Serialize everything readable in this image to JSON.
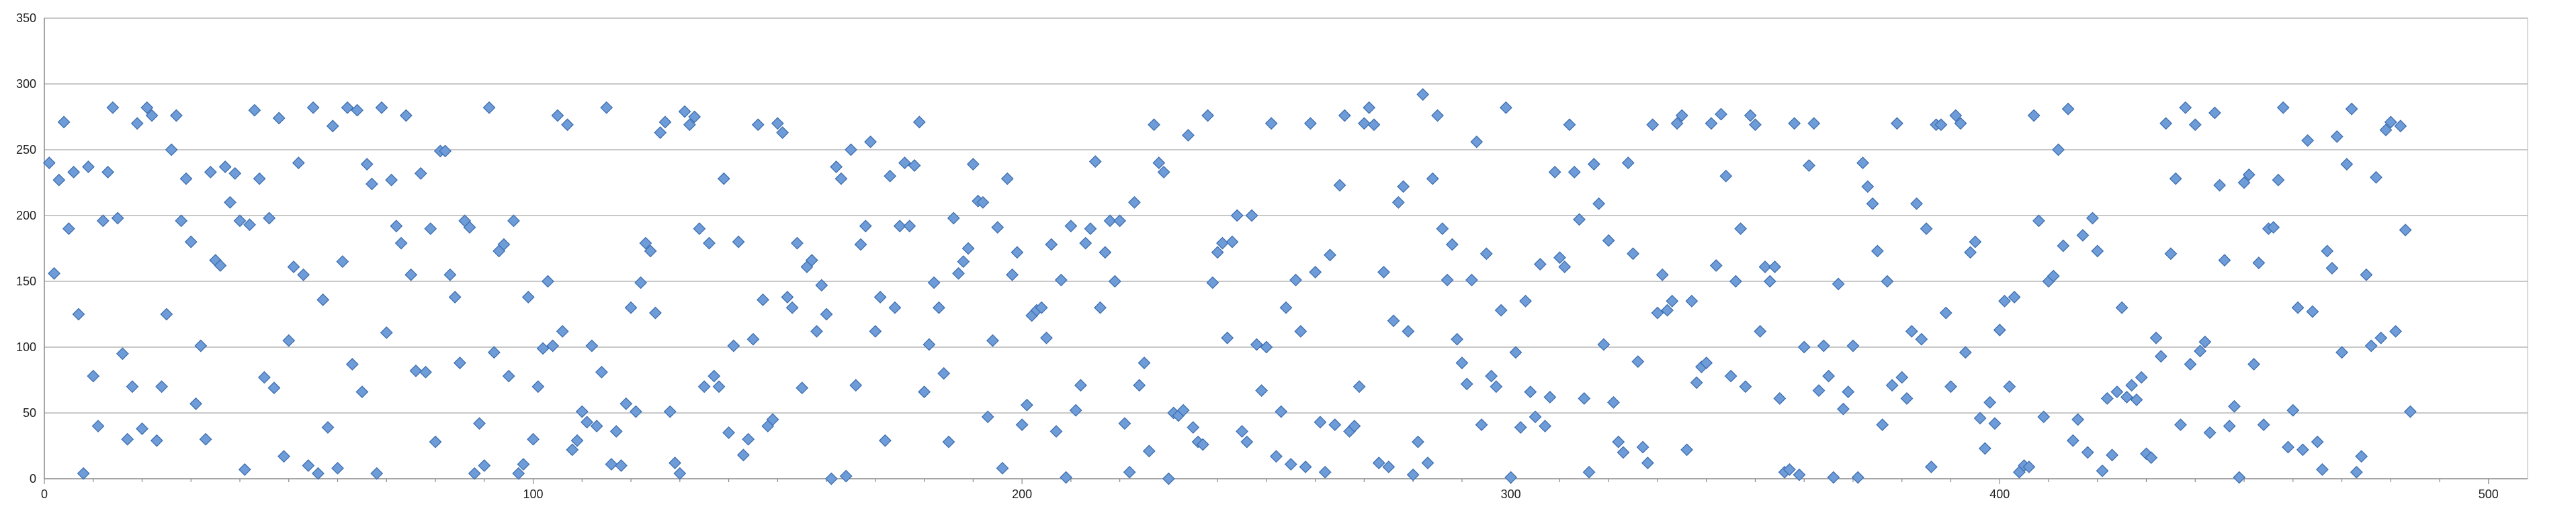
{
  "chart_data": {
    "type": "scatter",
    "title": "",
    "xlabel": "",
    "ylabel": "",
    "xlim": [
      0,
      508
    ],
    "ylim": [
      0,
      350
    ],
    "grid": "horizontal",
    "legend": "none",
    "marker": "diamond",
    "colors": {
      "marker_fill": "#6e9cd8",
      "marker_stroke": "#3f6fb0",
      "gridline": "#b5b5b5",
      "axis": "#888888"
    },
    "x_ticks": [
      "0",
      "100",
      "200",
      "300",
      "400",
      "500"
    ],
    "y_ticks": [
      "0",
      "50",
      "100",
      "150",
      "200",
      "250",
      "300",
      "350"
    ],
    "series": [
      {
        "y": [
          240,
          156,
          227,
          271,
          190,
          233,
          125,
          4,
          237,
          78,
          40,
          196,
          233,
          282,
          198,
          95,
          30,
          70,
          270,
          38,
          282,
          276,
          29,
          70,
          125,
          250,
          276,
          196,
          228,
          180,
          57,
          101,
          30,
          233,
          166,
          162,
          237,
          210,
          232,
          196,
          7,
          193,
          280,
          228,
          77,
          198,
          69,
          274,
          17,
          105,
          161,
          240,
          155,
          10,
          282,
          4,
          136,
          39,
          268,
          8,
          165,
          282,
          87,
          280,
          66,
          239,
          224,
          4,
          282,
          111,
          227,
          192,
          179,
          276,
          155,
          82,
          232,
          81,
          190,
          28,
          249,
          249,
          155,
          138,
          88,
          196,
          191,
          4,
          42,
          10,
          282,
          96,
          173,
          178,
          78,
          196,
          4,
          11,
          138,
          30,
          70,
          99,
          150,
          101,
          276,
          112,
          269,
          22,
          29,
          51,
          43,
          101,
          40,
          81,
          282,
          11,
          36,
          10,
          57,
          130,
          51,
          149,
          179,
          173,
          126,
          263,
          271,
          51,
          12,
          4,
          279,
          269,
          275,
          190,
          70,
          179,
          78,
          70,
          228,
          35,
          101,
          180,
          18,
          30,
          106,
          269,
          136,
          40,
          45,
          270,
          263,
          138,
          130,
          179,
          69,
          161,
          166,
          112,
          147,
          125,
          0,
          237,
          228,
          2,
          250,
          71,
          178,
          192,
          256,
          112,
          138,
          29,
          230,
          130,
          192,
          240,
          192,
          238,
          271,
          66,
          102,
          149,
          130,
          80,
          28,
          198,
          156,
          165,
          175,
          239,
          211,
          210,
          47,
          105,
          191,
          8,
          228,
          155,
          172,
          41,
          56,
          124,
          128,
          130,
          107,
          178,
          36,
          151,
          1,
          192,
          52,
          71,
          179,
          190,
          241,
          130,
          172,
          196,
          150,
          196,
          42,
          5,
          210,
          71,
          88,
          21,
          269,
          240,
          233,
          0,
          50,
          48,
          52,
          261,
          39,
          28,
          26,
          276,
          149,
          172,
          179,
          107,
          180,
          200,
          36,
          28,
          200,
          102,
          67,
          100,
          270,
          17,
          51,
          130,
          11,
          151,
          112,
          9,
          270,
          157,
          43,
          5,
          170,
          41,
          223,
          276,
          36,
          40,
          70,
          270,
          282,
          269,
          12,
          157,
          9,
          120,
          210,
          222,
          112,
          3,
          28,
          292,
          12,
          228,
          276,
          190,
          151,
          178,
          106,
          88,
          72,
          151,
          256,
          41,
          171,
          78,
          70,
          128,
          282,
          1,
          96,
          39,
          135,
          66,
          47,
          163,
          40,
          62,
          233,
          168,
          161,
          269,
          233,
          197,
          61,
          5,
          239,
          209,
          102,
          181,
          58,
          28,
          20,
          240,
          171,
          89,
          24,
          12,
          269,
          126,
          155,
          128,
          135,
          270,
          276,
          22,
          135,
          73,
          85,
          88,
          270,
          162,
          277,
          230,
          78,
          150,
          190,
          70,
          276,
          269,
          112,
          161,
          150,
          161,
          61,
          5,
          7,
          270,
          3,
          100,
          238,
          270,
          67,
          101,
          78,
          1,
          148,
          53,
          66,
          101,
          1,
          240,
          222,
          209,
          173,
          41,
          150,
          71,
          270,
          77,
          61,
          112,
          209,
          106,
          190,
          9,
          269,
          269,
          126,
          70,
          276,
          270,
          96,
          172,
          180,
          46,
          23,
          58,
          42,
          113,
          135,
          70,
          138,
          5,
          10,
          9,
          276,
          196,
          47,
          150,
          154,
          250,
          177,
          281,
          29,
          45,
          185,
          20,
          198,
          173,
          6,
          61,
          18,
          66,
          130,
          62,
          71,
          60,
          77,
          19,
          16,
          107,
          93,
          270,
          171,
          228,
          41,
          282,
          87,
          269,
          97,
          104,
          35,
          278,
          223,
          166,
          40,
          55,
          1,
          225,
          231,
          87,
          164,
          41,
          190,
          191,
          227,
          282,
          24,
          52,
          130,
          22,
          257,
          127,
          28,
          7,
          173,
          160,
          260,
          96,
          239,
          281,
          5,
          17,
          155,
          101,
          229,
          107,
          265,
          271,
          112,
          268,
          189,
          51
        ]
      }
    ]
  }
}
